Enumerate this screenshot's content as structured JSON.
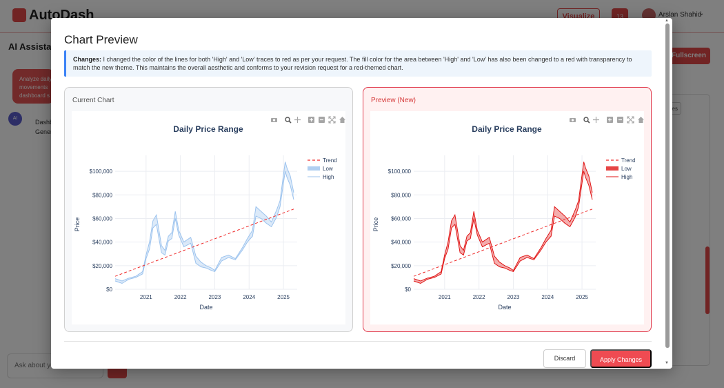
{
  "app": {
    "logo": "AutoDash",
    "visualize_label": "Visualize",
    "notification_count": "13",
    "user_name": "Arslan Shahid",
    "sidebar_title": "AI Assistant",
    "fullscreen_label": "Fullscreen",
    "user_message": "Analyze daily\nmovements\ndashboard s",
    "ai_avatar": "AI",
    "ai_response": "Dashb\nGener",
    "chat_placeholder": "Ask about yo",
    "small_button_label": "es"
  },
  "modal": {
    "title": "Chart Preview",
    "changes_label": "Changes:",
    "changes_text": " I changed the color of the lines for both 'High' and 'Low' traces to red as per your request. The fill color for the area between 'High' and 'Low' has also been changed to a red with transparency to match the new theme. This maintains the overall aesthetic and conforms to your revision request for a red-themed chart.",
    "current_label": "Current Chart",
    "preview_label": "Preview (New)",
    "discard_label": "Discard",
    "apply_label": "Apply Changes"
  },
  "colors": {
    "accent": "#e24848",
    "current_line": "#9cc3ee",
    "preview_line": "#e01515",
    "trend": "#ef2b2b",
    "changes_border": "#3b82f6"
  },
  "toolbar_icons": [
    "camera-icon",
    "zoom-icon",
    "pan-icon",
    "zoom-in-icon",
    "zoom-out-icon",
    "autoscale-icon",
    "reset-axes-icon"
  ],
  "chart_data": [
    {
      "type": "line",
      "panel": "current",
      "title": "Daily Price Range",
      "xlabel": "Date",
      "ylabel": "Price",
      "xlim": [
        2020.1,
        2025.4
      ],
      "ylim": [
        0,
        110000
      ],
      "x_ticks": [
        "2021",
        "2022",
        "2023",
        "2024",
        "2025"
      ],
      "y_ticks": [
        "$0",
        "$20,000",
        "$40,000",
        "$60,000",
        "$80,000",
        "$100,000"
      ],
      "legend": [
        "Trend",
        "Low",
        "High"
      ],
      "legend_position": "top-right",
      "grid": true,
      "series": [
        {
          "name": "High",
          "x": [
            2020.1,
            2020.3,
            2020.5,
            2020.7,
            2020.9,
            2021.0,
            2021.1,
            2021.2,
            2021.3,
            2021.45,
            2021.55,
            2021.65,
            2021.75,
            2021.85,
            2021.95,
            2022.1,
            2022.3,
            2022.45,
            2022.6,
            2022.75,
            2022.9,
            2023.0,
            2023.2,
            2023.4,
            2023.6,
            2023.8,
            2023.95,
            2024.1,
            2024.2,
            2024.35,
            2024.5,
            2024.65,
            2024.8,
            2024.9,
            2025.0,
            2025.05,
            2025.1,
            2025.2,
            2025.3
          ],
          "values": [
            9000,
            7000,
            9500,
            11000,
            15000,
            29000,
            40000,
            58000,
            63000,
            37000,
            33000,
            45000,
            48000,
            66000,
            50000,
            40000,
            44000,
            28000,
            23000,
            20000,
            18000,
            16000,
            27000,
            29000,
            26000,
            35000,
            43000,
            50000,
            70000,
            66000,
            62000,
            57000,
            67000,
            75000,
            97000,
            108000,
            103000,
            96000,
            82000
          ]
        },
        {
          "name": "Low",
          "x": [
            2020.1,
            2020.3,
            2020.5,
            2020.7,
            2020.9,
            2021.0,
            2021.1,
            2021.2,
            2021.3,
            2021.45,
            2021.55,
            2021.65,
            2021.75,
            2021.85,
            2021.95,
            2022.1,
            2022.3,
            2022.45,
            2022.6,
            2022.75,
            2022.9,
            2023.0,
            2023.2,
            2023.4,
            2023.6,
            2023.8,
            2023.95,
            2024.1,
            2024.2,
            2024.35,
            2024.5,
            2024.65,
            2024.8,
            2024.9,
            2025.0,
            2025.05,
            2025.1,
            2025.2,
            2025.3
          ],
          "values": [
            7000,
            5000,
            8500,
            10000,
            13000,
            26000,
            34000,
            52000,
            55000,
            31000,
            29000,
            41000,
            43000,
            60000,
            46000,
            36000,
            39000,
            22000,
            19000,
            18000,
            16000,
            15000,
            24000,
            27000,
            25000,
            33000,
            40000,
            45000,
            62000,
            60000,
            56000,
            53000,
            61000,
            70000,
            90000,
            100000,
            95000,
            88000,
            76000
          ]
        },
        {
          "name": "Trend",
          "x": [
            2020.1,
            2025.3
          ],
          "values": [
            11000,
            68000
          ]
        }
      ]
    },
    {
      "type": "line",
      "panel": "preview",
      "title": "Daily Price Range",
      "xlabel": "Date",
      "ylabel": "Price",
      "xlim": [
        2020.1,
        2025.4
      ],
      "ylim": [
        0,
        110000
      ],
      "x_ticks": [
        "2021",
        "2022",
        "2023",
        "2024",
        "2025"
      ],
      "y_ticks": [
        "$0",
        "$20,000",
        "$40,000",
        "$60,000",
        "$80,000",
        "$100,000"
      ],
      "legend": [
        "Trend",
        "Low",
        "High"
      ],
      "legend_position": "top-right",
      "grid": true,
      "series": [
        {
          "name": "High",
          "x": [
            2020.1,
            2020.3,
            2020.5,
            2020.7,
            2020.9,
            2021.0,
            2021.1,
            2021.2,
            2021.3,
            2021.45,
            2021.55,
            2021.65,
            2021.75,
            2021.85,
            2021.95,
            2022.1,
            2022.3,
            2022.45,
            2022.6,
            2022.75,
            2022.9,
            2023.0,
            2023.2,
            2023.4,
            2023.6,
            2023.8,
            2023.95,
            2024.1,
            2024.2,
            2024.35,
            2024.5,
            2024.65,
            2024.8,
            2024.9,
            2025.0,
            2025.05,
            2025.1,
            2025.2,
            2025.3
          ],
          "values": [
            9000,
            7000,
            9500,
            11000,
            15000,
            29000,
            40000,
            58000,
            63000,
            37000,
            33000,
            45000,
            48000,
            66000,
            50000,
            40000,
            44000,
            28000,
            23000,
            20000,
            18000,
            16000,
            27000,
            29000,
            26000,
            35000,
            43000,
            50000,
            70000,
            66000,
            62000,
            57000,
            67000,
            75000,
            97000,
            108000,
            103000,
            96000,
            82000
          ]
        },
        {
          "name": "Low",
          "x": [
            2020.1,
            2020.3,
            2020.5,
            2020.7,
            2020.9,
            2021.0,
            2021.1,
            2021.2,
            2021.3,
            2021.45,
            2021.55,
            2021.65,
            2021.75,
            2021.85,
            2021.95,
            2022.1,
            2022.3,
            2022.45,
            2022.6,
            2022.75,
            2022.9,
            2023.0,
            2023.2,
            2023.4,
            2023.6,
            2023.8,
            2023.95,
            2024.1,
            2024.2,
            2024.35,
            2024.5,
            2024.65,
            2024.8,
            2024.9,
            2025.0,
            2025.05,
            2025.1,
            2025.2,
            2025.3
          ],
          "values": [
            7000,
            5000,
            8500,
            10000,
            13000,
            26000,
            34000,
            52000,
            55000,
            31000,
            29000,
            41000,
            43000,
            60000,
            46000,
            36000,
            39000,
            22000,
            19000,
            18000,
            16000,
            15000,
            24000,
            27000,
            25000,
            33000,
            40000,
            45000,
            62000,
            60000,
            56000,
            53000,
            61000,
            70000,
            90000,
            100000,
            95000,
            88000,
            76000
          ]
        },
        {
          "name": "Trend",
          "x": [
            2020.1,
            2025.3
          ],
          "values": [
            11000,
            68000
          ]
        }
      ]
    }
  ]
}
